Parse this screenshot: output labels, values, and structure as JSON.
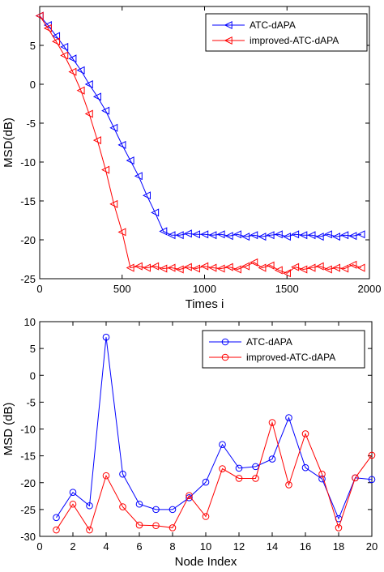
{
  "chart_data": [
    {
      "type": "line",
      "xlabel": "Times i",
      "ylabel": "MSD(dB)",
      "xlim": [
        0,
        2000
      ],
      "ylim": [
        -25,
        10
      ],
      "xticks": [
        0,
        500,
        1000,
        1500,
        2000
      ],
      "yticks": [
        -25,
        -20,
        -15,
        -10,
        -5,
        0,
        5
      ],
      "grid": false,
      "legend_position": "top-right",
      "series": [
        {
          "name": "ATC-dAPA",
          "color": "#0000ff",
          "marker": "triangle-left",
          "x": [
            0,
            50,
            100,
            150,
            200,
            250,
            300,
            350,
            400,
            450,
            500,
            550,
            600,
            650,
            700,
            750,
            800,
            850,
            900,
            950,
            1000,
            1050,
            1100,
            1150,
            1200,
            1250,
            1300,
            1350,
            1400,
            1450,
            1500,
            1550,
            1600,
            1650,
            1700,
            1750,
            1800,
            1850,
            1900,
            1950
          ],
          "y": [
            8.8,
            7.6,
            6.2,
            4.8,
            3.3,
            1.8,
            0,
            -1.6,
            -3.4,
            -5.6,
            -7.8,
            -9.8,
            -11.8,
            -14.3,
            -16.5,
            -18.9,
            -19.4,
            -19.4,
            -19.2,
            -19.3,
            -19.3,
            -19.4,
            -19.3,
            -19.5,
            -19.3,
            -19.6,
            -19.4,
            -19.6,
            -19.4,
            -19.3,
            -19.6,
            -19.3,
            -19.4,
            -19.4,
            -19.6,
            -19.3,
            -19.6,
            -19.4,
            -19.5,
            -19.3
          ]
        },
        {
          "name": "improved-ATC-dAPA",
          "color": "#ff0000",
          "marker": "triangle-left",
          "x": [
            0,
            50,
            100,
            150,
            200,
            250,
            300,
            350,
            400,
            450,
            500,
            550,
            600,
            650,
            700,
            750,
            800,
            850,
            900,
            950,
            1000,
            1050,
            1100,
            1150,
            1200,
            1250,
            1300,
            1350,
            1400,
            1450,
            1500,
            1550,
            1600,
            1650,
            1700,
            1750,
            1800,
            1850,
            1900,
            1950
          ],
          "y": [
            8.8,
            7.2,
            5.5,
            3.7,
            1.6,
            -0.8,
            -3.8,
            -7.2,
            -11.0,
            -15.4,
            -19.0,
            -23.6,
            -23.4,
            -23.6,
            -23.4,
            -23.7,
            -23.6,
            -23.8,
            -23.5,
            -23.7,
            -23.4,
            -23.6,
            -23.7,
            -23.5,
            -23.8,
            -23.4,
            -22.9,
            -23.6,
            -23.3,
            -23.9,
            -24.3,
            -23.5,
            -23.8,
            -23.6,
            -23.4,
            -23.8,
            -23.6,
            -23.7,
            -23.2,
            -23.6
          ]
        }
      ]
    },
    {
      "type": "line",
      "xlabel": "Node Index",
      "ylabel": "MSD (dB)",
      "xlim": [
        0,
        20
      ],
      "ylim": [
        -30,
        10
      ],
      "xticks": [
        0,
        2,
        4,
        6,
        8,
        10,
        12,
        14,
        16,
        18,
        20
      ],
      "yticks": [
        -30,
        -25,
        -20,
        -15,
        -10,
        -5,
        0,
        5,
        10
      ],
      "grid": false,
      "legend_position": "top-right",
      "series": [
        {
          "name": "ATC-dAPA",
          "color": "#0000ff",
          "marker": "circle",
          "x": [
            1,
            2,
            3,
            4,
            5,
            6,
            7,
            8,
            9,
            10,
            11,
            12,
            13,
            14,
            15,
            16,
            17,
            18,
            19,
            20
          ],
          "y": [
            -26.5,
            -21.8,
            -24.3,
            7.1,
            -18.4,
            -24.0,
            -25.0,
            -25.0,
            -22.8,
            -19.9,
            -12.9,
            -17.3,
            -17.0,
            -15.6,
            -7.9,
            -17.2,
            -19.3,
            -26.7,
            -19.1,
            -19.4
          ]
        },
        {
          "name": "improved-ATC-dAPA",
          "color": "#ff0000",
          "marker": "circle",
          "x": [
            1,
            2,
            3,
            4,
            5,
            6,
            7,
            8,
            9,
            10,
            11,
            12,
            13,
            14,
            15,
            16,
            17,
            18,
            19,
            20
          ],
          "y": [
            -28.8,
            -24.0,
            -28.8,
            -18.7,
            -24.5,
            -27.9,
            -28.0,
            -28.4,
            -22.4,
            -26.3,
            -17.4,
            -19.2,
            -19.2,
            -8.8,
            -20.4,
            -10.9,
            -18.4,
            -28.4,
            -19.1,
            -14.9
          ]
        }
      ]
    }
  ]
}
